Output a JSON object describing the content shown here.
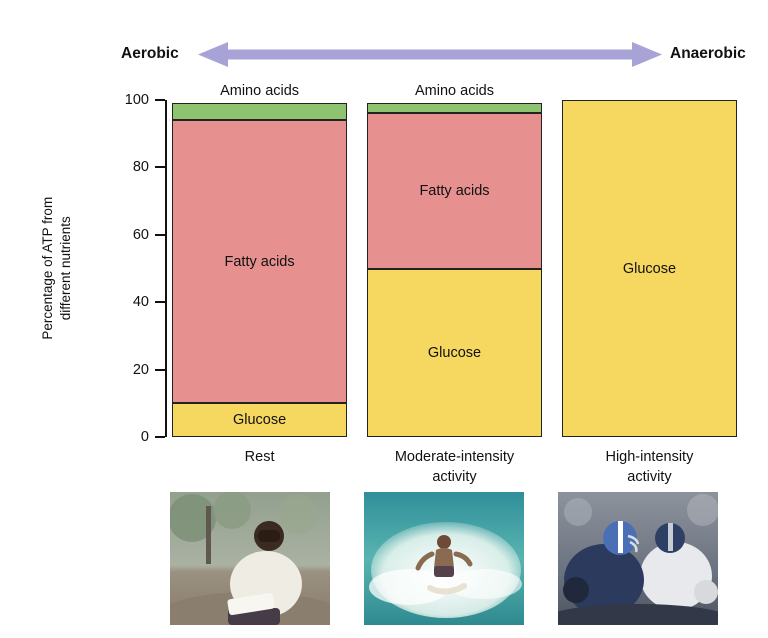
{
  "aerobic_scale": {
    "left_label": "Aerobic",
    "right_label": "Anaerobic",
    "arrow_color": "#a8a3d7"
  },
  "chart_data": {
    "type": "bar",
    "stacked": true,
    "ylabel": "Percentage of ATP from\ndifferent nutrients",
    "ylim": [
      0,
      100
    ],
    "yticks": [
      0,
      20,
      40,
      60,
      80,
      100
    ],
    "grid": false,
    "categories": [
      "Rest",
      "Moderate-intensity\nactivity",
      "High-intensity\nactivity"
    ],
    "series": [
      {
        "name": "Glucose",
        "color": "#f6d75f",
        "values": [
          10,
          50,
          100
        ]
      },
      {
        "name": "Fatty acids",
        "color": "#e69090",
        "values": [
          84,
          46,
          0
        ]
      },
      {
        "name": "Amino acids",
        "color": "#8ec36f",
        "values": [
          5,
          3,
          0
        ]
      }
    ],
    "above_bar_labels": [
      "Amino acids",
      "Amino acids",
      ""
    ],
    "bar_outline_color": "#222222",
    "inside_label_min_value": 8
  },
  "photos": [
    {
      "name": "man-reading-at-rest"
    },
    {
      "name": "surfer-moderate-activity"
    },
    {
      "name": "football-players-high-activity"
    }
  ]
}
